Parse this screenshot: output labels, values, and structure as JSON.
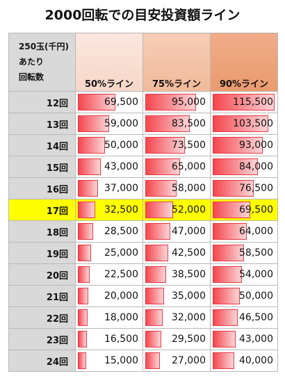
{
  "chart_data": {
    "type": "table",
    "title": "2000回転での目安投資額ライン",
    "row_header_label": [
      "250玉(千円)",
      "あたり",
      "回転数"
    ],
    "columns": [
      "50%ライン",
      "75%ライン",
      "90%ライン"
    ],
    "rows": [
      "12回",
      "13回",
      "14回",
      "15回",
      "16回",
      "17回",
      "18回",
      "19回",
      "20回",
      "21回",
      "22回",
      "23回",
      "24回"
    ],
    "values": [
      [
        "69,500",
        "95,000",
        "115,500"
      ],
      [
        "59,000",
        "83,500",
        "103,500"
      ],
      [
        "50,000",
        "73,500",
        "93,000"
      ],
      [
        "43,000",
        "65,000",
        "84,000"
      ],
      [
        "37,000",
        "58,000",
        "76,500"
      ],
      [
        "32,500",
        "52,000",
        "69,500"
      ],
      [
        "28,500",
        "47,000",
        "64,000"
      ],
      [
        "25,000",
        "42,500",
        "58,500"
      ],
      [
        "22,500",
        "38,500",
        "54,000"
      ],
      [
        "20,000",
        "35,000",
        "50,000"
      ],
      [
        "18,000",
        "32,000",
        "46,500"
      ],
      [
        "16,500",
        "29,500",
        "43,000"
      ],
      [
        "15,000",
        "27,000",
        "40,000"
      ]
    ],
    "bar_max": 115500,
    "highlight_row": "17回",
    "colors": {
      "bar": "#f5464e",
      "highlight": "#ffff00",
      "row_header": "#d9d9d9"
    }
  }
}
